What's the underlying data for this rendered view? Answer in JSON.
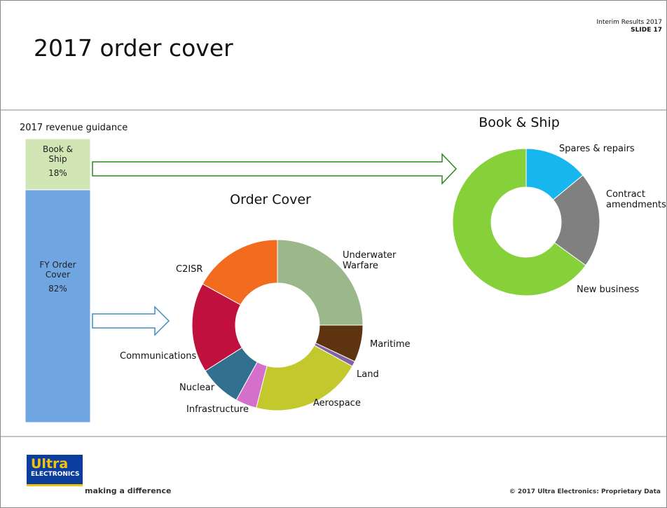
{
  "header": {
    "title": "2017 order cover",
    "event": "Interim Results 2017",
    "slide": "SLIDE 17"
  },
  "chart_data": [
    {
      "type": "bar",
      "stacked": true,
      "title": "2017 revenue guidance",
      "series": [
        {
          "name": "Book & Ship",
          "color": "#d2e5b4",
          "values": [
            18
          ],
          "value_labels": [
            "18%"
          ]
        },
        {
          "name": "FY Order Cover",
          "color": "#6fa6e2",
          "values": [
            82
          ],
          "value_labels": [
            "82%"
          ]
        }
      ]
    },
    {
      "type": "donut",
      "title": "Order Cover",
      "categories": [
        "Underwater Warfare",
        "Maritime",
        "Land",
        "Aerospace",
        "Infrastructure",
        "Nuclear",
        "Communications",
        "C2ISR"
      ],
      "values": [
        25,
        7,
        1,
        21,
        4,
        8,
        17,
        17
      ],
      "colors": [
        "#9bb88a",
        "#5e330f",
        "#8064a2",
        "#c3c92c",
        "#d470c9",
        "#32708f",
        "#c0103d",
        "#f26b1f"
      ]
    },
    {
      "type": "donut",
      "title": "Book & Ship",
      "categories": [
        "Spares & repairs",
        "Contract amendments",
        "New business"
      ],
      "values": [
        14,
        21,
        65
      ],
      "colors": [
        "#17b6ee",
        "#808080",
        "#86d03a"
      ]
    }
  ],
  "footer": {
    "logo_top": "Ultra",
    "logo_bottom": "ELECTRONICS",
    "tagline": "making a difference",
    "copyright": "© 2017 Ultra Electronics: Proprietary Data"
  }
}
